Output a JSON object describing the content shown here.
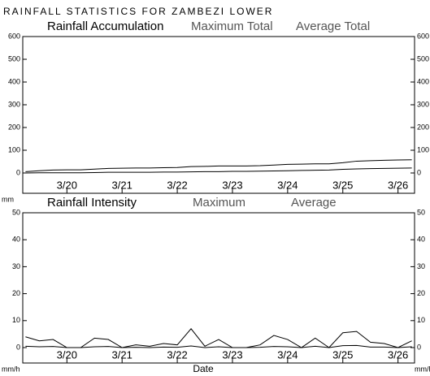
{
  "title": "RAINFALL STATISTICS FOR ZAMBEZI LOWER",
  "chart_data": [
    {
      "type": "line",
      "title": "Rainfall Accumulation",
      "y_label": "mm",
      "x": [
        19.25,
        19.5,
        19.75,
        20,
        20.25,
        20.5,
        20.75,
        21,
        21.25,
        21.5,
        21.75,
        22,
        22.25,
        22.5,
        22.75,
        23,
        23.25,
        23.5,
        23.75,
        24,
        24.25,
        24.5,
        24.75,
        25,
        25.25,
        25.5,
        25.75,
        26,
        26.25
      ],
      "xlim": [
        19.2,
        26.3
      ],
      "xticks": [
        {
          "value": 20,
          "label": "3/20"
        },
        {
          "value": 21,
          "label": "3/21"
        },
        {
          "value": 22,
          "label": "3/22"
        },
        {
          "value": 23,
          "label": "3/23"
        },
        {
          "value": 24,
          "label": "3/24"
        },
        {
          "value": 25,
          "label": "3/25"
        },
        {
          "value": 26,
          "label": "3/26"
        }
      ],
      "ylim": [
        0,
        600
      ],
      "yticks": [
        0,
        100,
        200,
        300,
        400,
        500,
        600
      ],
      "series": [
        {
          "name": "Maximum Total",
          "color": "#000000",
          "values": [
            6,
            10,
            13,
            14,
            14,
            17,
            20,
            21,
            22,
            22,
            23,
            24,
            28,
            29,
            31,
            31,
            31,
            32,
            35,
            38,
            39,
            40,
            40,
            45,
            52,
            54,
            56,
            57,
            58
          ]
        },
        {
          "name": "Average Total",
          "color": "#000000",
          "values": [
            0,
            1,
            1,
            1,
            1,
            2,
            3,
            3,
            3,
            3,
            4,
            4,
            5,
            6,
            6,
            7,
            7,
            8,
            9,
            10,
            11,
            12,
            13,
            16,
            18,
            19,
            20,
            21,
            22
          ]
        }
      ]
    },
    {
      "type": "line",
      "title": "Rainfall Intensity",
      "y_label": "mm/h",
      "x_label": "Date",
      "x": [
        19.25,
        19.5,
        19.75,
        20,
        20.25,
        20.5,
        20.75,
        21,
        21.25,
        21.5,
        21.75,
        22,
        22.25,
        22.5,
        22.75,
        23,
        23.25,
        23.5,
        23.75,
        24,
        24.25,
        24.5,
        24.75,
        25,
        25.25,
        25.5,
        25.75,
        26,
        26.25
      ],
      "xlim": [
        19.2,
        26.3
      ],
      "xticks": [
        {
          "value": 20,
          "label": "3/20"
        },
        {
          "value": 21,
          "label": "3/21"
        },
        {
          "value": 22,
          "label": "3/22"
        },
        {
          "value": 23,
          "label": "3/23"
        },
        {
          "value": 24,
          "label": "3/24"
        },
        {
          "value": 25,
          "label": "3/25"
        },
        {
          "value": 26,
          "label": "3/26"
        }
      ],
      "ylim": [
        0,
        50
      ],
      "yticks": [
        0,
        10,
        20,
        30,
        40,
        50
      ],
      "series": [
        {
          "name": "Maximum",
          "color": "#000000",
          "values": [
            4,
            2.5,
            3,
            0,
            0,
            3.5,
            3,
            0,
            1,
            0.5,
            1.5,
            1,
            7,
            0.5,
            3,
            0,
            0,
            1,
            4.5,
            3,
            0,
            3.5,
            0,
            5.5,
            6,
            2,
            1.5,
            0,
            2.5
          ]
        },
        {
          "name": "Average",
          "color": "#000000",
          "values": [
            0.5,
            0.3,
            0.4,
            0,
            0,
            0.3,
            0.4,
            0,
            0.1,
            0,
            0.2,
            0.1,
            0.6,
            0,
            0.3,
            0,
            0,
            0.1,
            0.4,
            0.3,
            0,
            0.5,
            0,
            0.7,
            0.8,
            0.2,
            0.2,
            0,
            0.3
          ]
        }
      ]
    }
  ]
}
